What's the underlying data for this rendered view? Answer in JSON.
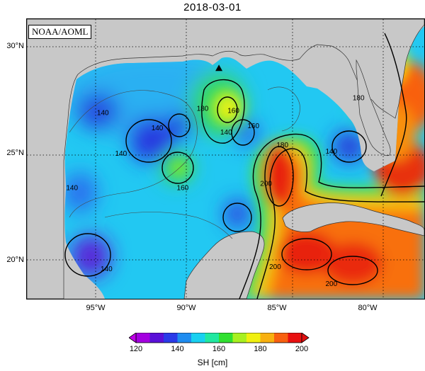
{
  "title": "2018-03-01",
  "credit": "NOAA/AOML",
  "axes": {
    "y_ticks": [
      {
        "label": "30°N",
        "lat": 30
      },
      {
        "label": "25°N",
        "lat": 25
      },
      {
        "label": "20°N",
        "lat": 20
      }
    ],
    "x_ticks": [
      {
        "label": "95°W",
        "lon": -95
      },
      {
        "label": "90°W",
        "lon": -90
      },
      {
        "label": "85°W",
        "lon": -85
      },
      {
        "label": "80°W",
        "lon": -80
      }
    ]
  },
  "colorbar": {
    "title": "SH [cm]",
    "range": [
      120,
      200
    ],
    "labels": [
      "120",
      "140",
      "160",
      "180",
      "200"
    ],
    "colors": [
      "#a400e0",
      "#5a10d8",
      "#2a3ae8",
      "#1e8cf0",
      "#18d0f0",
      "#20e8a0",
      "#30e030",
      "#a8f020",
      "#f0f010",
      "#f8b010",
      "#f86010",
      "#e81010"
    ]
  },
  "contour_labels": [
    {
      "text": "140",
      "lon": -94.6,
      "lat": 26.8
    },
    {
      "text": "140",
      "lon": -91.6,
      "lat": 26.1
    },
    {
      "text": "140",
      "lon": -93.6,
      "lat": 24.9
    },
    {
      "text": "140",
      "lon": -96.3,
      "lat": 23.3
    },
    {
      "text": "140",
      "lon": -94.4,
      "lat": 19.5
    },
    {
      "text": "160",
      "lon": -90.2,
      "lat": 23.3
    },
    {
      "text": "180",
      "lon": -89.1,
      "lat": 27.0
    },
    {
      "text": "160",
      "lon": -87.4,
      "lat": 26.9
    },
    {
      "text": "140",
      "lon": -87.8,
      "lat": 25.9
    },
    {
      "text": "160",
      "lon": -86.3,
      "lat": 26.2
    },
    {
      "text": "180",
      "lon": -84.7,
      "lat": 25.3
    },
    {
      "text": "200",
      "lon": -85.6,
      "lat": 23.5
    },
    {
      "text": "140",
      "lon": -82.0,
      "lat": 25.0
    },
    {
      "text": "180",
      "lon": -80.5,
      "lat": 27.5
    },
    {
      "text": "200",
      "lon": -85.1,
      "lat": 19.6
    },
    {
      "text": "200",
      "lon": -82.0,
      "lat": 18.8
    }
  ],
  "marker": {
    "symbol": "triangle",
    "lon": -88.2,
    "lat": 29.0
  }
}
